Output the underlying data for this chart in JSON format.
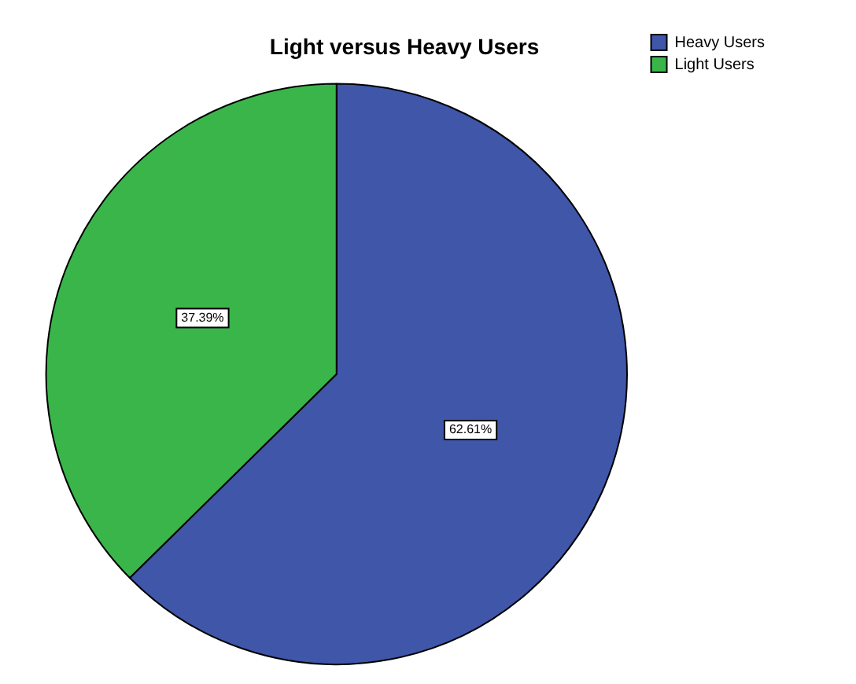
{
  "chart_data": {
    "type": "pie",
    "title": "Light versus Heavy Users",
    "categories": [
      "Heavy Users",
      "Light Users"
    ],
    "values": [
      62.61,
      37.39
    ],
    "colors": [
      "#3f56a9",
      "#3ab54a"
    ],
    "value_labels": [
      "62.61%",
      "37.39%"
    ],
    "legend": "top right"
  }
}
